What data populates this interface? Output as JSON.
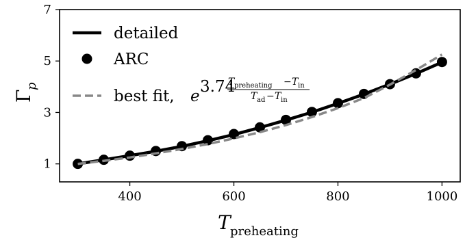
{
  "chart_data": {
    "type": "line",
    "xlabel": {
      "main": "T",
      "sub": "preheating"
    },
    "ylabel": {
      "main": "Γ",
      "sub": "p"
    },
    "xlim": [
      265,
      1035
    ],
    "ylim": [
      0.3,
      7.0
    ],
    "xticks": [
      400,
      600,
      800,
      1000
    ],
    "yticks": [
      1,
      3,
      5,
      7
    ],
    "grid": false,
    "legend_position": "top-left",
    "series": [
      {
        "name": "detailed",
        "style": "solid",
        "color": "#000000",
        "x": [
          300,
          350,
          400,
          450,
          500,
          550,
          600,
          650,
          700,
          750,
          800,
          850,
          900,
          950,
          1000
        ],
        "y": [
          1.0,
          1.16,
          1.32,
          1.49,
          1.68,
          1.9,
          2.14,
          2.41,
          2.7,
          3.01,
          3.35,
          3.71,
          4.1,
          4.51,
          4.95
        ]
      },
      {
        "name": "ARC",
        "style": "markers",
        "color": "#000000",
        "x": [
          300,
          350,
          400,
          450,
          500,
          550,
          600,
          650,
          700,
          750,
          800,
          850,
          900,
          950,
          1000
        ],
        "y": [
          1.0,
          1.16,
          1.32,
          1.5,
          1.69,
          1.92,
          2.16,
          2.42,
          2.71,
          3.02,
          3.36,
          3.72,
          4.1,
          4.52,
          4.96
        ]
      },
      {
        "name": "best fit",
        "style": "dashed",
        "color": "#888888",
        "x": [
          300,
          350,
          400,
          450,
          500,
          550,
          600,
          650,
          700,
          750,
          800,
          850,
          900,
          950,
          1000
        ],
        "y": [
          1.0,
          1.12,
          1.25,
          1.41,
          1.58,
          1.77,
          1.99,
          2.23,
          2.51,
          2.82,
          3.17,
          3.56,
          4.08,
          4.65,
          5.25
        ]
      }
    ],
    "legend": {
      "detailed": "detailed",
      "arc": "ARC",
      "fit_prefix": "best fit, ",
      "fit_base": "e",
      "fit_coeff": "3.74",
      "fit_num_main": "T",
      "fit_num_sub1": "preheating",
      "fit_num_minus": "−",
      "fit_num_sub2": "in",
      "fit_den_main": "T",
      "fit_den_sub1": "ad",
      "fit_den_minus": "−",
      "fit_den_sub2": "in"
    }
  }
}
